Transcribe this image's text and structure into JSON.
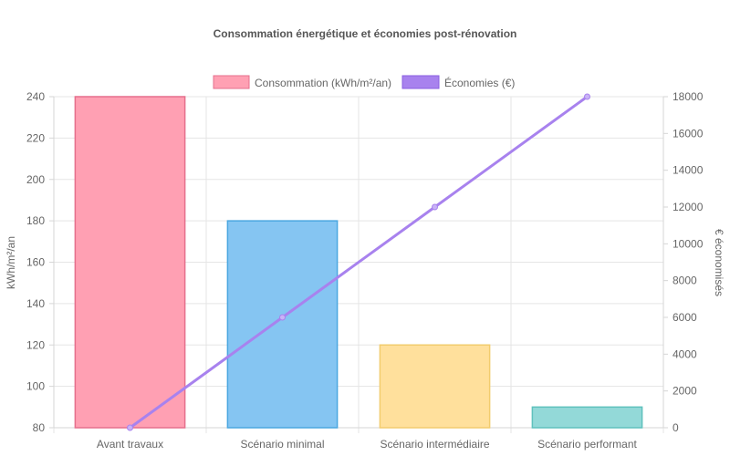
{
  "chart_data": {
    "type": "bar",
    "title": "Consommation énergétique et économies post-rénovation",
    "categories": [
      "Avant travaux",
      "Scénario minimal",
      "Scénario intermédiaire",
      "Scénario performant"
    ],
    "series": [
      {
        "name": "Consommation (kWh/m²/an)",
        "type": "bar",
        "axis": "left",
        "values": [
          240,
          180,
          120,
          90
        ],
        "fill_colors": [
          "#ffa0b3",
          "#85c5f2",
          "#ffe09c",
          "#93d9d8"
        ],
        "stroke_colors": [
          "#e56f8c",
          "#4aa7e0",
          "#f2cc6e",
          "#5fc1bd"
        ]
      },
      {
        "name": "Économies (€)",
        "type": "line",
        "axis": "right",
        "values": [
          0,
          6000,
          12000,
          18000
        ],
        "color": "#a882ee"
      }
    ],
    "ylabel": "kWh/m²/an",
    "ylim": [
      80,
      240
    ],
    "yticks": [
      "80",
      "100",
      "120",
      "140",
      "160",
      "180",
      "200",
      "220",
      "240"
    ],
    "y2label": "€ économisés",
    "y2lim": [
      0,
      18000
    ],
    "y2ticks": [
      "0",
      "2000",
      "4000",
      "6000",
      "8000",
      "10000",
      "12000",
      "14000",
      "16000",
      "18000"
    ],
    "legend_position": "top",
    "grid": true
  }
}
